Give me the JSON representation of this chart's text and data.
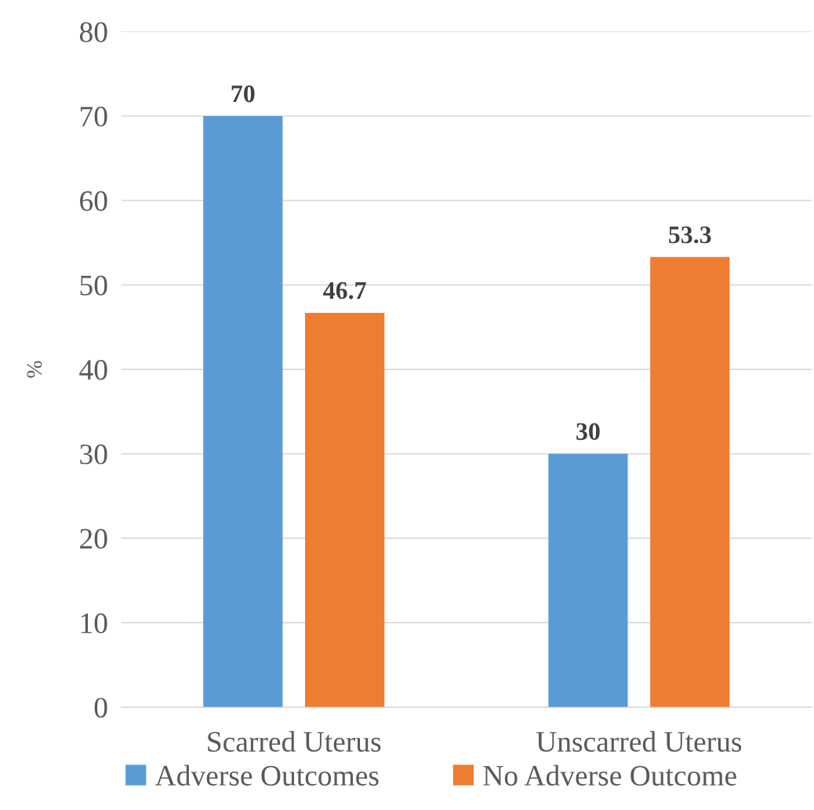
{
  "chart_data": {
    "type": "bar",
    "ylabel": "%",
    "categories": [
      "Scarred Uterus",
      "Unscarred Uterus"
    ],
    "series": [
      {
        "name": "Adverse Outcomes",
        "color": "#5b9bd5",
        "values": [
          70,
          30
        ]
      },
      {
        "name": "No Adverse Outcome",
        "color": "#ed7d31",
        "values": [
          46.7,
          53.3
        ]
      }
    ],
    "ylim": [
      0,
      80
    ],
    "yticks": [
      0,
      10,
      20,
      30,
      40,
      50,
      60,
      70,
      80
    ],
    "grid": "y",
    "legend": "bottom",
    "data_labels": true
  }
}
